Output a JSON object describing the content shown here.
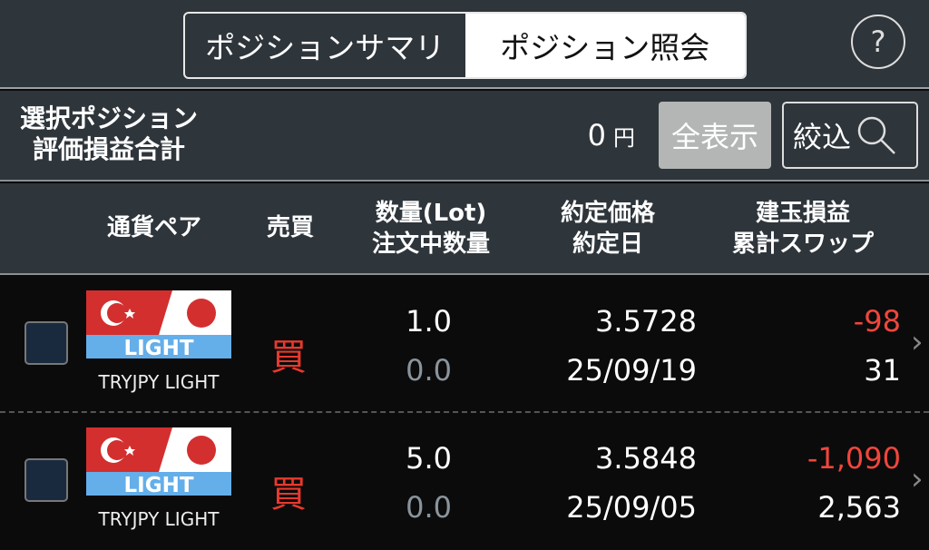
{
  "tabs": [
    {
      "label": "ポジションサマリ",
      "active": false
    },
    {
      "label": "ポジション照会",
      "active": true
    }
  ],
  "help_label": "?",
  "summary": {
    "label_line1": "選択ポジション",
    "label_line2": "評価損益合計",
    "value": "0",
    "unit": "円",
    "show_all": "全表示",
    "filter": "絞込"
  },
  "columns": {
    "pair": "通貨ペア",
    "side": "売買",
    "qty1": "数量(Lot)",
    "qty2": "注文中数量",
    "price1": "約定価格",
    "price2": "約定日",
    "pnl1": "建玉損益",
    "pnl2": "累計スワップ"
  },
  "rows": [
    {
      "pair": "TRYJPY LIGHT",
      "badge": "LIGHT",
      "side": "買",
      "qty": "1.0",
      "pending": "0.0",
      "price": "3.5728",
      "date": "25/09/19",
      "pnl": "-98",
      "swap": "31",
      "checked": false
    },
    {
      "pair": "TRYJPY LIGHT",
      "badge": "LIGHT",
      "side": "買",
      "qty": "5.0",
      "pending": "0.0",
      "price": "3.5848",
      "date": "25/09/05",
      "pnl": "-1,090",
      "swap": "2,563",
      "checked": false
    }
  ],
  "colors": {
    "header_bg": "#2e353b",
    "negative": "#f0463c",
    "buy": "#e8392d"
  }
}
